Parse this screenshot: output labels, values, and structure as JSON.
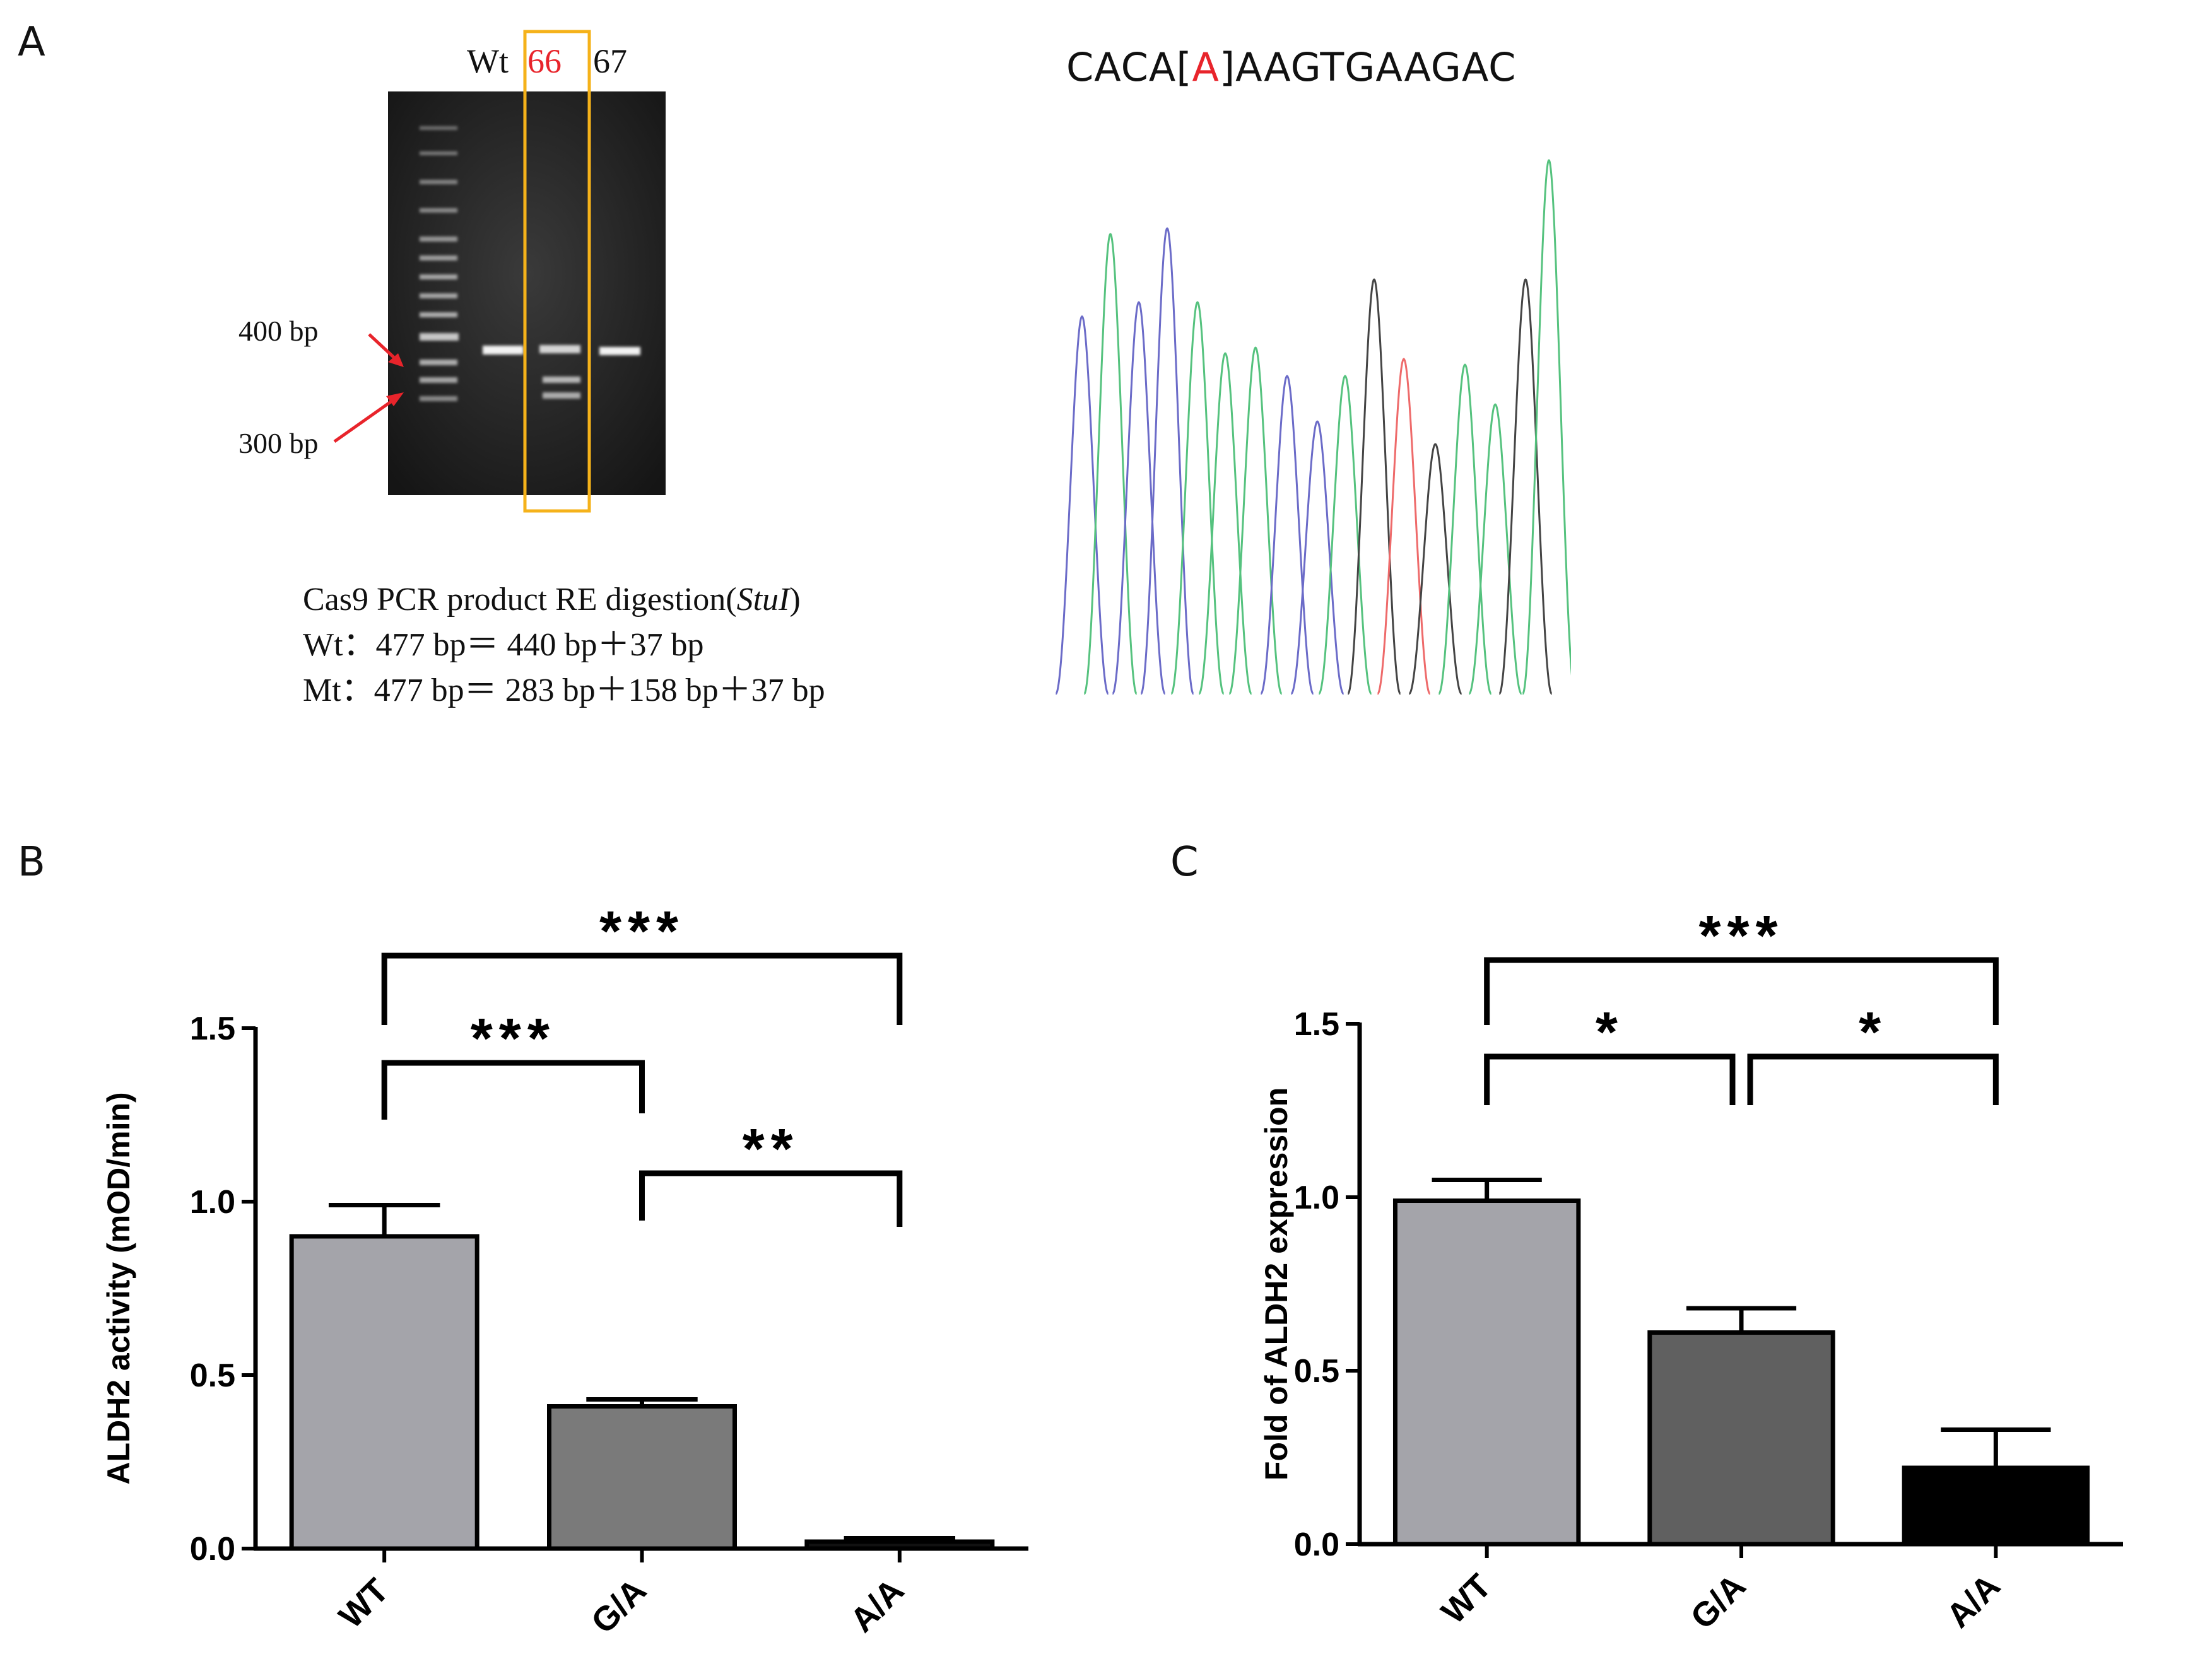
{
  "panels": {
    "a": "A",
    "b": "B",
    "c": "C"
  },
  "gel": {
    "lanes": [
      "Wt",
      "66",
      "67"
    ],
    "marker_labels": [
      "400 bp",
      "300 bp"
    ],
    "highlight_color": "#f5b21a",
    "highlight_lane_color": "#e8242b"
  },
  "caption": {
    "line1_prefix": "Cas9 PCR product RE digestion(",
    "line1_enzyme": "StuI",
    "line1_suffix": ")",
    "line2": "Wt：477 bp＝ 440 bp＋37 bp",
    "line3": "Mt：477 bp＝ 283 bp＋158 bp＋37 bp"
  },
  "sequence": {
    "before": "CACA[",
    "mutant": "A",
    "after": "]AAGTGAAGAC",
    "mutant_color": "#e8242b"
  },
  "chart_data": [
    {
      "type": "bar",
      "panel": "B",
      "categories": [
        "WT",
        "G/A",
        "A/A"
      ],
      "values": [
        0.9,
        0.41,
        0.02
      ],
      "errors": [
        0.09,
        0.02,
        0.01
      ],
      "ylabel": "ALDH2 activity (mOD/min)",
      "ylim": [
        0,
        1.5
      ],
      "yticks": [
        "0.0",
        "0.5",
        "1.0",
        "1.5"
      ],
      "colors": [
        "#a4a4aa",
        "#7a7a7a",
        "#111111"
      ],
      "significance": [
        {
          "from": 0,
          "to": 2,
          "label": "***"
        },
        {
          "from": 0,
          "to": 1,
          "label": "***"
        },
        {
          "from": 1,
          "to": 2,
          "label": "**"
        }
      ]
    },
    {
      "type": "bar",
      "panel": "C",
      "categories": [
        "WT",
        "G/A",
        "A/A"
      ],
      "values": [
        0.99,
        0.61,
        0.22
      ],
      "errors": [
        0.06,
        0.07,
        0.11
      ],
      "ylabel": "Fold of ALDH2  expression",
      "ylim": [
        0,
        1.5
      ],
      "yticks": [
        "0.0",
        "0.5",
        "1.0",
        "1.5"
      ],
      "colors": [
        "#a4a4aa",
        "#606060",
        "#000000"
      ],
      "significance": [
        {
          "from": 0,
          "to": 2,
          "label": "***"
        },
        {
          "from": 0,
          "to": 1,
          "label": "*"
        },
        {
          "from": 1,
          "to": 2,
          "label": "*"
        }
      ]
    }
  ]
}
